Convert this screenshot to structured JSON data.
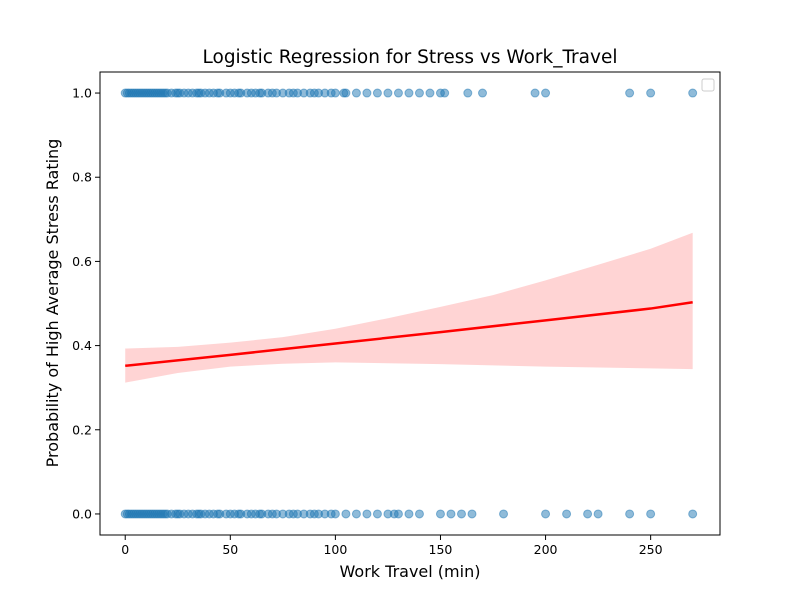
{
  "chart_data": {
    "type": "scatter",
    "title": "Logistic Regression for Stress vs Work_Travel",
    "xlabel": "Work Travel (min)",
    "ylabel": "Probability of High Average Stress Rating",
    "xlim": [
      -12,
      283
    ],
    "ylim": [
      -0.05,
      1.05
    ],
    "xticks": [
      0,
      50,
      100,
      150,
      200,
      250
    ],
    "yticks": [
      0.0,
      0.2,
      0.4,
      0.6,
      0.8,
      1.0
    ],
    "ytick_labels": [
      "0.0",
      "0.2",
      "0.4",
      "0.6",
      "0.8",
      "1.0"
    ],
    "grid": false,
    "legend": "upper right (empty)",
    "colors": {
      "points": "#1f77b4",
      "fit_line": "#ff0000",
      "confidence_band": "#ffcccc"
    },
    "series": [
      {
        "kind": "points",
        "x": [
          0,
          1,
          2,
          3,
          4,
          5,
          6,
          7,
          8,
          9,
          10,
          11,
          12,
          13,
          14,
          15,
          16,
          17,
          18,
          19,
          20,
          22,
          24,
          25,
          26,
          28,
          30,
          32,
          34,
          35,
          36,
          38,
          40,
          42,
          44,
          45,
          48,
          50,
          52,
          54,
          55,
          58,
          60,
          62,
          64,
          65,
          68,
          70,
          72,
          75,
          78,
          80,
          82,
          85,
          88,
          90,
          92,
          95,
          98,
          100,
          104,
          105,
          110,
          115,
          120,
          125,
          130,
          135,
          140,
          145,
          150,
          152,
          163,
          170,
          195,
          200,
          240,
          250,
          270
        ],
        "y": [
          1,
          1,
          1,
          1,
          1,
          1,
          1,
          1,
          1,
          1,
          1,
          1,
          1,
          1,
          1,
          1,
          1,
          1,
          1,
          1,
          1,
          1,
          1,
          1,
          1,
          1,
          1,
          1,
          1,
          1,
          1,
          1,
          1,
          1,
          1,
          1,
          1,
          1,
          1,
          1,
          1,
          1,
          1,
          1,
          1,
          1,
          1,
          1,
          1,
          1,
          1,
          1,
          1,
          1,
          1,
          1,
          1,
          1,
          1,
          1,
          1,
          1,
          1,
          1,
          1,
          1,
          1,
          1,
          1,
          1,
          1,
          1,
          1,
          1,
          1,
          1,
          1,
          1,
          1
        ]
      },
      {
        "kind": "points",
        "x": [
          0,
          1,
          2,
          3,
          4,
          5,
          6,
          7,
          8,
          9,
          10,
          11,
          12,
          13,
          14,
          15,
          16,
          17,
          18,
          19,
          20,
          22,
          24,
          25,
          26,
          28,
          30,
          32,
          34,
          35,
          36,
          38,
          40,
          42,
          44,
          45,
          48,
          50,
          52,
          54,
          55,
          58,
          60,
          62,
          64,
          65,
          68,
          70,
          72,
          75,
          78,
          80,
          82,
          85,
          88,
          90,
          92,
          95,
          98,
          100,
          105,
          110,
          115,
          120,
          125,
          128,
          130,
          135,
          140,
          150,
          155,
          160,
          165,
          180,
          200,
          210,
          220,
          225,
          240,
          250,
          270
        ],
        "y": [
          0,
          0,
          0,
          0,
          0,
          0,
          0,
          0,
          0,
          0,
          0,
          0,
          0,
          0,
          0,
          0,
          0,
          0,
          0,
          0,
          0,
          0,
          0,
          0,
          0,
          0,
          0,
          0,
          0,
          0,
          0,
          0,
          0,
          0,
          0,
          0,
          0,
          0,
          0,
          0,
          0,
          0,
          0,
          0,
          0,
          0,
          0,
          0,
          0,
          0,
          0,
          0,
          0,
          0,
          0,
          0,
          0,
          0,
          0,
          0,
          0,
          0,
          0,
          0,
          0,
          0,
          0,
          0,
          0,
          0,
          0,
          0,
          0,
          0,
          0,
          0,
          0,
          0,
          0,
          0,
          0
        ]
      },
      {
        "kind": "fit_line",
        "x": [
          0,
          50,
          100,
          150,
          200,
          250,
          270
        ],
        "y": [
          0.352,
          0.378,
          0.405,
          0.432,
          0.46,
          0.488,
          0.503
        ]
      },
      {
        "kind": "confidence_band",
        "x": [
          0,
          25,
          50,
          75,
          100,
          125,
          150,
          175,
          200,
          225,
          250,
          270
        ],
        "lower": [
          0.312,
          0.335,
          0.35,
          0.357,
          0.36,
          0.358,
          0.356,
          0.353,
          0.35,
          0.348,
          0.346,
          0.344
        ],
        "upper": [
          0.393,
          0.397,
          0.407,
          0.42,
          0.44,
          0.465,
          0.492,
          0.52,
          0.555,
          0.592,
          0.63,
          0.668
        ]
      }
    ]
  }
}
